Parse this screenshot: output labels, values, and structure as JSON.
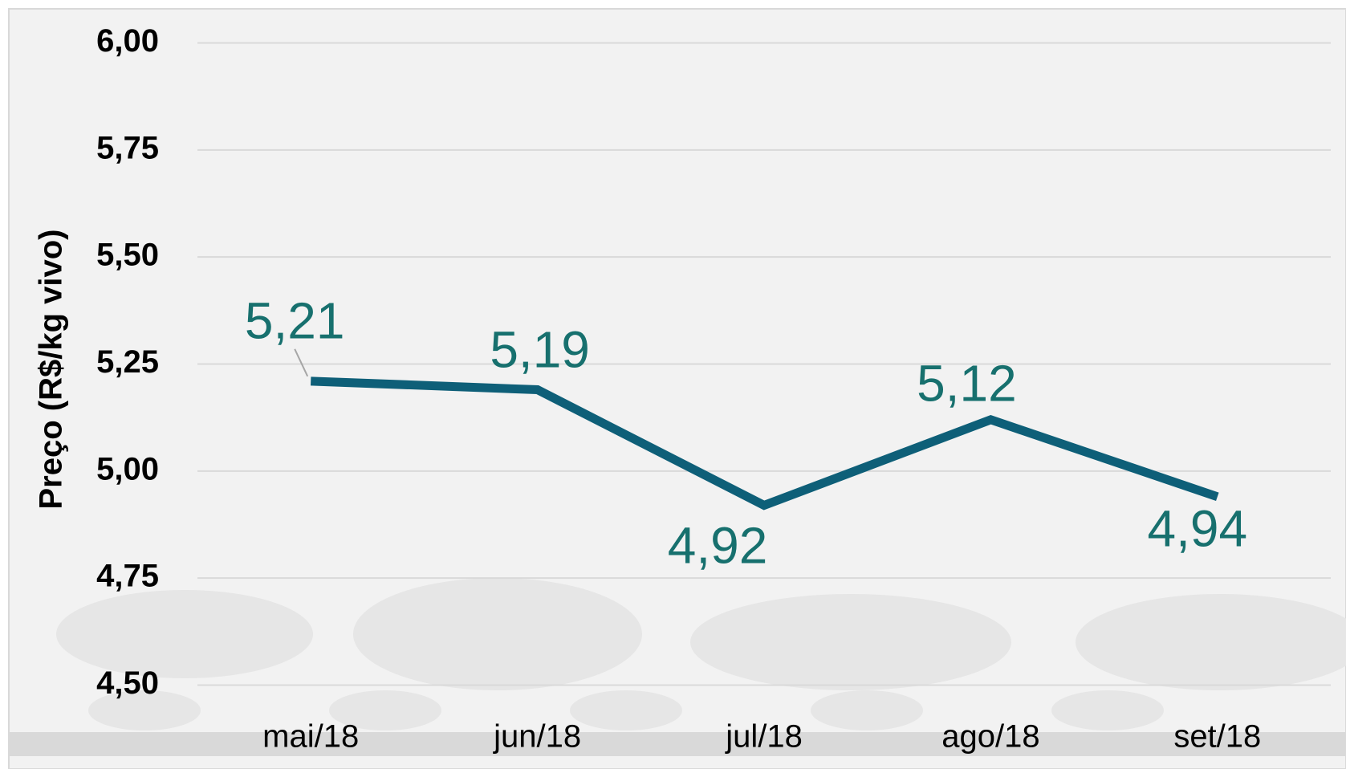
{
  "chart_data": {
    "type": "line",
    "y_label": "Preço (R$/kg vivo)",
    "categories": [
      "mai/18",
      "jun/18",
      "jul/18",
      "ago/18",
      "set/18"
    ],
    "series": [
      {
        "color": "#0e5f78",
        "values": [
          5.21,
          5.19,
          4.92,
          5.12,
          4.94
        ],
        "value_labels": [
          "5,21",
          "5,19",
          "4,92",
          "5,12",
          "4,94"
        ],
        "label_color": "#17706e"
      }
    ],
    "ylim": [
      4.5,
      6.0
    ],
    "yticks": [
      {
        "value": 4.5,
        "label": "4,50"
      },
      {
        "value": 4.75,
        "label": "4,75"
      },
      {
        "value": 5.0,
        "label": "5,00"
      },
      {
        "value": 5.25,
        "label": "5,25"
      },
      {
        "value": 5.5,
        "label": "5,50"
      },
      {
        "value": 5.75,
        "label": "5,75"
      },
      {
        "value": 6.0,
        "label": "6,00"
      }
    ],
    "grid": true
  }
}
